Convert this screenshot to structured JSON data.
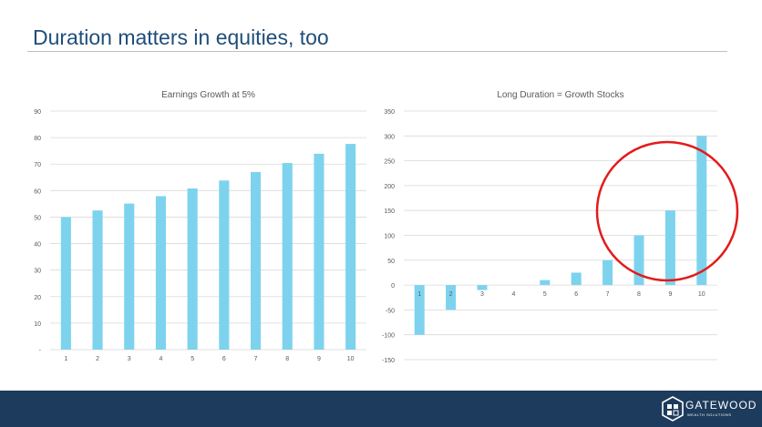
{
  "slide": {
    "title": "Duration matters in equities, too"
  },
  "footer": {
    "logo_name": "GATEWOOD",
    "logo_sub": "WEALTH SOLUTIONS",
    "logo_icon": "gatewood-logo-icon",
    "background_color": "#1d3b5c"
  },
  "chart_data": [
    {
      "type": "bar",
      "title": "Earnings Growth at 5%",
      "xlabel": "",
      "ylabel": "",
      "categories": [
        "1",
        "2",
        "3",
        "4",
        "5",
        "6",
        "7",
        "8",
        "9",
        "10"
      ],
      "values": [
        50,
        52.5,
        55.1,
        57.9,
        60.8,
        63.8,
        67,
        70.4,
        73.9,
        77.6
      ],
      "yticks": [
        "-",
        "10",
        "20",
        "30",
        "40",
        "50",
        "60",
        "70",
        "80",
        "90"
      ],
      "ylim": [
        0,
        90
      ],
      "grid": true,
      "color": "#7dd3ee"
    },
    {
      "type": "bar",
      "title": "Long Duration = Growth Stocks",
      "xlabel": "",
      "ylabel": "",
      "categories": [
        "1",
        "2",
        "3",
        "4",
        "5",
        "6",
        "7",
        "8",
        "9",
        "10"
      ],
      "values": [
        -100,
        -50,
        -10,
        0,
        10,
        25,
        50,
        100,
        150,
        300
      ],
      "yticks": [
        "-150",
        "-100",
        "-50",
        "0",
        "50",
        "100",
        "150",
        "200",
        "250",
        "300",
        "350"
      ],
      "ylim": [
        -150,
        350
      ],
      "grid": true,
      "color": "#7dd3ee",
      "annotation": "red circle highlighting categories 8-10"
    }
  ]
}
